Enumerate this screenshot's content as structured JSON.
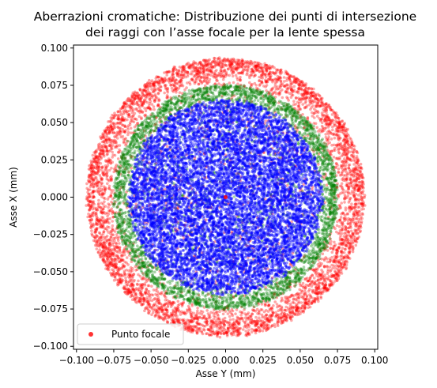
{
  "chart_data": {
    "type": "scatter",
    "title": [
      "Aberrazioni cromatiche: Distribuzione dei punti di intersezione",
      "dei raggi con l’asse focale per la lente spessa"
    ],
    "xlabel": "Asse Y (mm)",
    "ylabel": "Asse X (mm)",
    "xlim": [
      -0.102,
      0.102
    ],
    "ylim": [
      -0.102,
      0.102
    ],
    "xticks": [
      -0.1,
      -0.075,
      -0.05,
      -0.025,
      0.0,
      0.025,
      0.05,
      0.075,
      0.1
    ],
    "xtick_labels": [
      "−0.100",
      "−0.075",
      "−0.050",
      "−0.025",
      "0.000",
      "0.025",
      "0.050",
      "0.075",
      "0.100"
    ],
    "yticks": [
      -0.1,
      -0.075,
      -0.05,
      -0.025,
      0.0,
      0.025,
      0.05,
      0.075,
      0.1
    ],
    "ytick_labels": [
      "−0.100",
      "−0.075",
      "−0.050",
      "−0.025",
      "0.000",
      "0.025",
      "0.050",
      "0.075",
      "0.100"
    ],
    "grid": false,
    "legend_position": "lower-left",
    "series": [
      {
        "color": "#ff0000",
        "alpha": 0.35,
        "distribution": "ring",
        "r_min": 0.0,
        "r_max": 0.093,
        "dense_r_min": 0.073,
        "points": 5200
      },
      {
        "color": "#008000",
        "alpha": 0.35,
        "distribution": "ring",
        "r_min": 0.0,
        "r_max": 0.075,
        "dense_r_min": 0.062,
        "points": 3400
      },
      {
        "color": "#0000ff",
        "alpha": 0.45,
        "distribution": "disk",
        "r_min": 0.0,
        "r_max": 0.065,
        "points": 9000
      },
      {
        "name": "Punto focale",
        "color": "#ff0000",
        "alpha": 0.8,
        "x": [
          0.0
        ],
        "y": [
          0.0
        ]
      }
    ]
  }
}
